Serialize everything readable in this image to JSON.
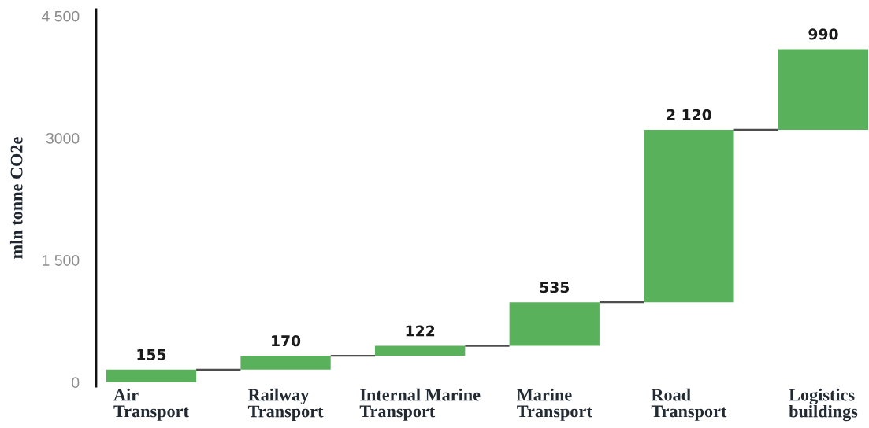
{
  "chart_data": {
    "type": "bar",
    "ylabel": "mln tonne CO2e",
    "categories": [
      "Air\nTransport",
      "Railway\nTransport",
      "Internal Marine\nTransport",
      "Marine\nTransport",
      "Road\nTransport",
      "Logistics\nbuildings"
    ],
    "values": [
      155,
      170,
      122,
      535,
      2120,
      990
    ],
    "base": [
      0,
      155,
      325,
      447,
      982,
      3102
    ],
    "value_labels": [
      "155",
      "170",
      "122",
      "535",
      "2 120",
      "990"
    ],
    "color": "#5ab15b",
    "ylim": [
      -50,
      4580
    ],
    "yticks": [
      0,
      {
        "value": 1500,
        "label": "1 500"
      },
      3000,
      {
        "value": 4500,
        "label": "4 500"
      }
    ]
  }
}
